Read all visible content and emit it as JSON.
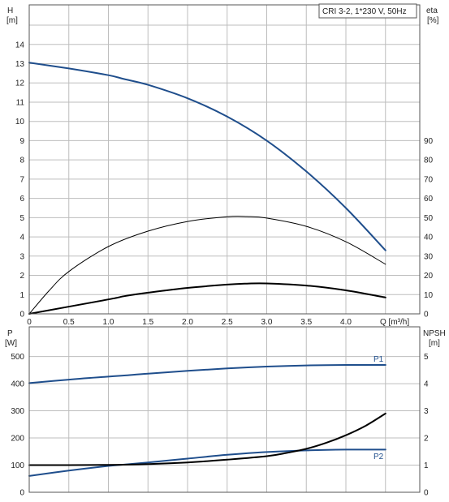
{
  "chart_data": [
    {
      "type": "line",
      "title": "CRI 3-2, 1*230 V, 50Hz",
      "xlabel": "Q [m³/h]",
      "xlim": [
        0,
        4.5
      ],
      "x_ticks": [
        "0",
        "0.5",
        "1.0",
        "1.5",
        "2.0",
        "2.5",
        "3.0",
        "3.5",
        "4.0"
      ],
      "ylabel_left": [
        "H",
        "[m]"
      ],
      "ylim_left": [
        0,
        15
      ],
      "y_ticks_left": [
        "0",
        "1",
        "2",
        "3",
        "4",
        "5",
        "6",
        "7",
        "8",
        "9",
        "10",
        "11",
        "12",
        "13",
        "14"
      ],
      "ylabel_right": [
        "eta",
        "[%]"
      ],
      "ylim_right": [
        0,
        100
      ],
      "y_ticks_right": [
        "0",
        "10",
        "20",
        "30",
        "40",
        "50",
        "60",
        "70",
        "80",
        "90"
      ],
      "grid": true,
      "series": [
        {
          "axis": "left",
          "color": "#1f4e8c",
          "x": [
            0,
            0.5,
            1.0,
            1.2,
            1.5,
            2.0,
            2.5,
            3.0,
            3.5,
            4.0,
            4.5
          ],
          "values": [
            13.05,
            12.75,
            12.4,
            12.2,
            11.9,
            11.2,
            10.25,
            9.0,
            7.4,
            5.5,
            3.3
          ]
        },
        {
          "axis": "right",
          "color": "#000000",
          "x": [
            0,
            0.25,
            0.5,
            1.0,
            1.5,
            2.0,
            2.5,
            2.75,
            3.0,
            3.5,
            4.0,
            4.5
          ],
          "values": [
            0,
            12,
            22,
            35,
            43,
            48,
            50.5,
            50.6,
            49.8,
            45.5,
            37.5,
            25.8
          ]
        },
        {
          "axis": "left",
          "color": "#000000",
          "x": [
            0,
            1.0,
            1.2,
            1.5,
            2.0,
            2.5,
            2.75,
            3.0,
            3.5,
            4.0,
            4.5
          ],
          "values": [
            0,
            0.75,
            0.92,
            1.1,
            1.35,
            1.52,
            1.57,
            1.58,
            1.47,
            1.22,
            0.85
          ]
        }
      ]
    },
    {
      "type": "line",
      "xlim": [
        0,
        4.5
      ],
      "ylabel_left": [
        "P",
        "[W]"
      ],
      "ylim_left": [
        0,
        580
      ],
      "y_ticks_left": [
        "0",
        "100",
        "200",
        "300",
        "400",
        "500"
      ],
      "ylabel_right": [
        "NPSH",
        "[m]"
      ],
      "ylim_right": [
        0,
        5.8
      ],
      "y_ticks_right": [
        "0",
        "1",
        "2",
        "3",
        "4",
        "5"
      ],
      "grid": true,
      "series": [
        {
          "name": "P1",
          "axis": "left",
          "color": "#1f4e8c",
          "x": [
            0,
            0.5,
            1.0,
            1.2,
            1.5,
            2.0,
            2.5,
            3.0,
            3.5,
            4.0,
            4.5
          ],
          "values": [
            402,
            415,
            426,
            430,
            437,
            447,
            456,
            463,
            467,
            469,
            469
          ]
        },
        {
          "name": "P2",
          "axis": "left",
          "color": "#1f4e8c",
          "x": [
            0,
            0.5,
            1.0,
            1.2,
            1.5,
            2.0,
            2.5,
            3.0,
            3.5,
            4.0,
            4.5
          ],
          "values": [
            60,
            80,
            97,
            102,
            110,
            124,
            138,
            148,
            154,
            157,
            157
          ]
        },
        {
          "axis": "right",
          "color": "#000000",
          "x": [
            0,
            0.5,
            1.0,
            1.5,
            2.0,
            2.5,
            3.0,
            3.25,
            3.5,
            3.75,
            4.0,
            4.25,
            4.5
          ],
          "values": [
            1.0,
            1.0,
            1.01,
            1.04,
            1.1,
            1.2,
            1.33,
            1.45,
            1.6,
            1.82,
            2.1,
            2.45,
            2.9
          ]
        }
      ]
    }
  ]
}
